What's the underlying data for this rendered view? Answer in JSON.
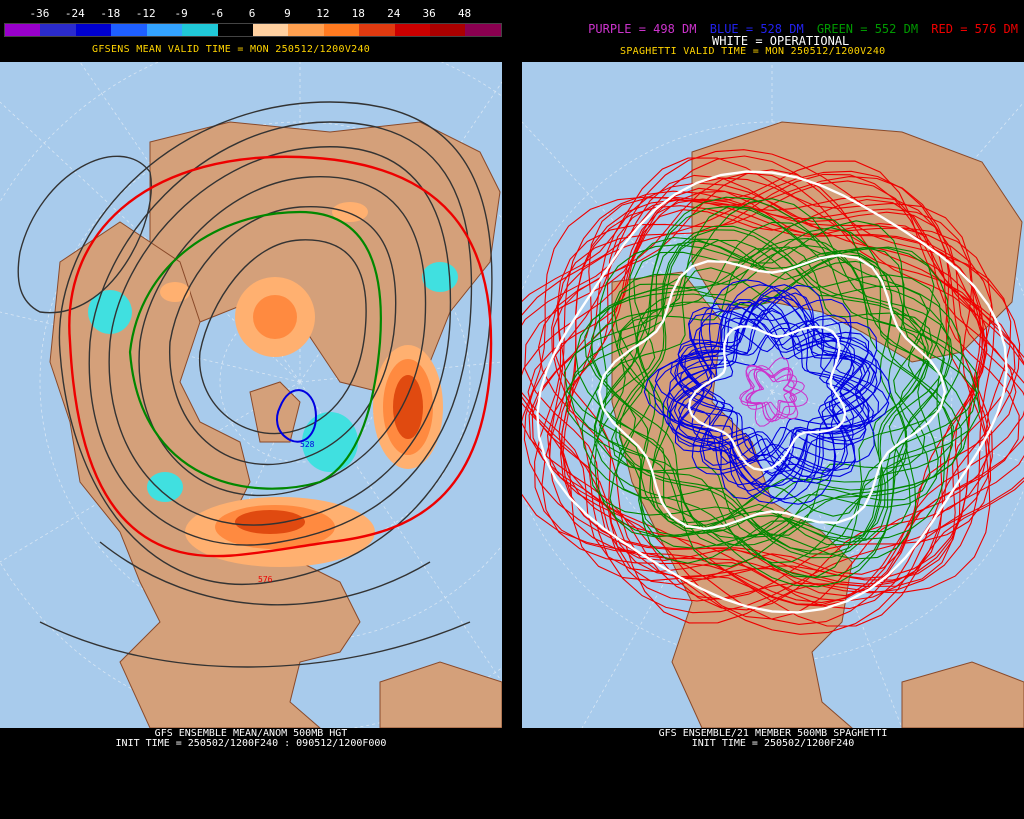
{
  "left_panel": {
    "colorbar": {
      "labels": [
        "-36",
        "-24",
        "-18",
        "-12",
        "-9",
        "-6",
        "6",
        "9",
        "12",
        "18",
        "24",
        "36",
        "48"
      ],
      "colors": [
        "#9900cc",
        "#2b2bcc",
        "#0000d0",
        "#1e5fff",
        "#33a3ff",
        "#20c8d8",
        "#000000",
        "#ffd0a0",
        "#ffa050",
        "#ff7a20",
        "#e03a10",
        "#cc0000",
        "#aa0000",
        "#8a0050"
      ]
    },
    "title": "GFSENS MEAN VALID TIME = MON 250512/1200V240",
    "contour_label": "576",
    "contour_label_2": "528",
    "footer_line1": "GFS ENSEMBLE MEAN/ANOM 500MB HGT",
    "footer_line2": "INIT TIME = 250502/1200F240 : 090512/1200F000"
  },
  "right_panel": {
    "legend": {
      "purple": "PURPLE = 498 DM",
      "blue": "BLUE = 528 DM",
      "green": "GREEN = 552 DM",
      "red": "RED = 576 DM",
      "white": "WHITE = OPERATIONAL"
    },
    "title": "SPAGHETTI VALID TIME = MON 250512/1200V240",
    "footer_line1": "GFS ENSEMBLE/21 MEMBER 500MB SPAGHETTI",
    "footer_line2": "INIT TIME = 250502/1200F240"
  },
  "colors": {
    "ocean": "#a8cbec",
    "land": "#d4a07a",
    "border": "#8a4a2a",
    "purple": "#cc33cc",
    "blue": "#0000e0",
    "green": "#008800",
    "red": "#ee0000",
    "white": "#ffffff"
  }
}
